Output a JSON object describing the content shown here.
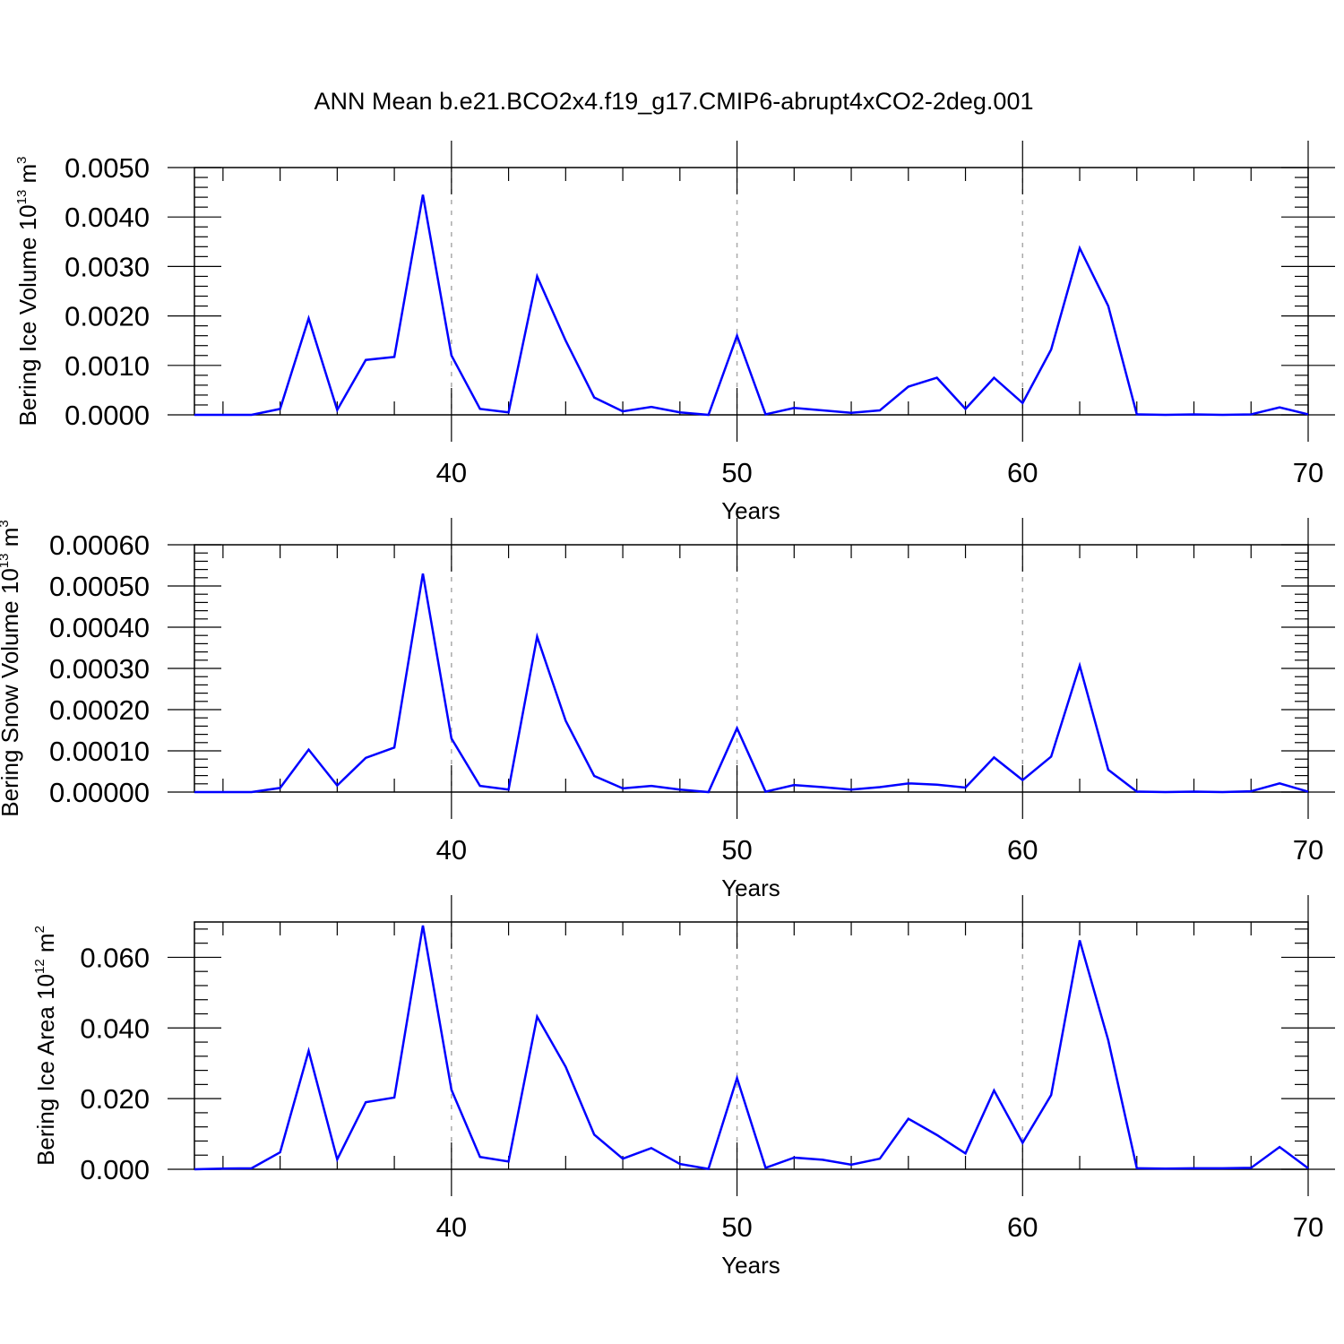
{
  "figure": {
    "title": "ANN Mean b.e21.BCO2x4.f19_g17.CMIP6-abrupt4xCO2-2deg.001",
    "line_color": "#0000ff",
    "grid_color": "#aaaaaa"
  },
  "chart_data": [
    {
      "type": "line",
      "title": "",
      "xlabel": "Years",
      "ylabel": {
        "text": "Bering Ice Volume 10",
        "exp": "13",
        "unit": " m",
        "unit_exp": "3"
      },
      "xlim": [
        31,
        70
      ],
      "ylim": [
        0,
        0.005
      ],
      "grid": "vertical dashed at 40, 50, 60",
      "x_ticks": [
        "40",
        "50",
        "60",
        "70"
      ],
      "y_ticks": [
        "0.0000",
        "0.0010",
        "0.0020",
        "0.0030",
        "0.0040",
        "0.0050"
      ],
      "x": [
        31,
        32,
        33,
        34,
        35,
        36,
        37,
        38,
        39,
        40,
        41,
        42,
        43,
        44,
        45,
        46,
        47,
        48,
        49,
        50,
        51,
        52,
        53,
        54,
        55,
        56,
        57,
        58,
        59,
        60,
        61,
        62,
        63,
        64,
        65,
        66,
        67,
        68,
        69,
        70
      ],
      "series": [
        {
          "values": [
            0.0,
            0.0,
            0.0,
            0.00012,
            0.00195,
            0.0001,
            0.00111,
            0.00117,
            0.00445,
            0.0012,
            0.00012,
            5e-05,
            0.0028,
            0.0015,
            0.00035,
            7e-05,
            0.00016,
            5e-05,
            0.0,
            0.0016,
            1e-05,
            0.00014,
            9e-05,
            4e-05,
            9e-05,
            0.00057,
            0.00075,
            0.00012,
            0.00075,
            0.00024,
            0.00132,
            0.00337,
            0.0022,
            1e-05,
            0.0,
            1e-05,
            0.0,
            1e-05,
            0.00015,
            1e-05
          ]
        }
      ]
    },
    {
      "type": "line",
      "title": "",
      "xlabel": "Years",
      "ylabel": {
        "text": "Bering Snow Volume 10",
        "exp": "13",
        "unit": " m",
        "unit_exp": "3"
      },
      "xlim": [
        31,
        70
      ],
      "ylim": [
        0,
        0.0006
      ],
      "grid": "vertical dashed at 40, 50, 60",
      "x_ticks": [
        "40",
        "50",
        "60",
        "70"
      ],
      "y_ticks": [
        "0.00000",
        "0.00010",
        "0.00020",
        "0.00030",
        "0.00040",
        "0.00050",
        "0.00060"
      ],
      "x": [
        31,
        32,
        33,
        34,
        35,
        36,
        37,
        38,
        39,
        40,
        41,
        42,
        43,
        44,
        45,
        46,
        47,
        48,
        49,
        50,
        51,
        52,
        53,
        54,
        55,
        56,
        57,
        58,
        59,
        60,
        61,
        62,
        63,
        64,
        65,
        66,
        67,
        68,
        69,
        70
      ],
      "series": [
        {
          "values": [
            0.0,
            0.0,
            0.0,
            1e-05,
            0.000103,
            1.6e-05,
            8.3e-05,
            0.000108,
            0.00053,
            0.00013,
            1.5e-05,
            6e-06,
            0.000377,
            0.000173,
            3.9e-05,
            9e-06,
            1.5e-05,
            6e-06,
            0.0,
            0.000155,
            1e-06,
            1.7e-05,
            1.2e-05,
            6e-06,
            1.2e-05,
            2.1e-05,
            1.8e-05,
            1.1e-05,
            8.4e-05,
            2.9e-05,
            8.6e-05,
            0.000307,
            5.4e-05,
            1e-06,
            0.0,
            1e-06,
            0.0,
            2e-06,
            2.1e-05,
            1e-06
          ]
        }
      ]
    },
    {
      "type": "line",
      "title": "",
      "xlabel": "Years",
      "ylabel": {
        "text": "Bering Ice Area 10",
        "exp": "12",
        "unit": " m",
        "unit_exp": "2"
      },
      "xlim": [
        31,
        70
      ],
      "ylim": [
        0,
        0.07
      ],
      "grid": "vertical dashed at 40, 50, 60",
      "x_ticks": [
        "40",
        "50",
        "60",
        "70"
      ],
      "y_ticks": [
        "0.000",
        "0.020",
        "0.040",
        "0.060"
      ],
      "x": [
        31,
        32,
        33,
        34,
        35,
        36,
        37,
        38,
        39,
        40,
        41,
        42,
        43,
        44,
        45,
        46,
        47,
        48,
        49,
        50,
        51,
        52,
        53,
        54,
        55,
        56,
        57,
        58,
        59,
        60,
        61,
        62,
        63,
        64,
        65,
        66,
        67,
        68,
        69,
        70
      ],
      "series": [
        {
          "values": [
            0.0,
            0.0002,
            0.0003,
            0.0048,
            0.0335,
            0.0028,
            0.019,
            0.0203,
            0.069,
            0.0225,
            0.0035,
            0.0022,
            0.0432,
            0.029,
            0.0098,
            0.003,
            0.006,
            0.0015,
            0.0001,
            0.0258,
            0.0004,
            0.0033,
            0.0027,
            0.0013,
            0.003,
            0.0143,
            0.0097,
            0.0045,
            0.0223,
            0.0075,
            0.021,
            0.0648,
            0.0365,
            0.0003,
            0.0002,
            0.0003,
            0.0003,
            0.0004,
            0.0063,
            0.0003
          ]
        }
      ]
    }
  ]
}
